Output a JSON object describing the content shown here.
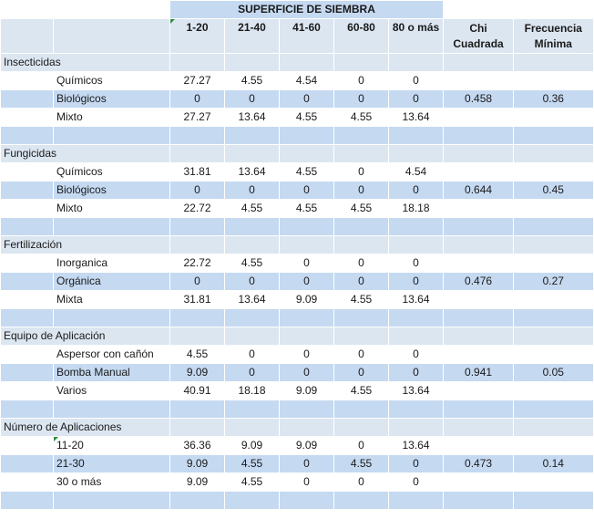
{
  "table_title": "SUPERFICIE DE SIEMBRA",
  "columns": [
    "1-20",
    "21-40",
    "41-60",
    "60-80",
    "80 o más"
  ],
  "chi_header": [
    "Chi",
    "Cuadrada"
  ],
  "freq_header": [
    "Frecuencia",
    "Mínima"
  ],
  "sections": [
    {
      "name": "Insecticidas",
      "rows": [
        {
          "label": "Químicos",
          "values": [
            "27.27",
            "4.55",
            "4.54",
            "0",
            "0"
          ],
          "chi": "",
          "freq": ""
        },
        {
          "label": "Biológicos",
          "values": [
            "0",
            "0",
            "0",
            "0",
            "0"
          ],
          "chi": "0.458",
          "freq": "0.36"
        },
        {
          "label": "Mixto",
          "values": [
            "27.27",
            "13.64",
            "4.55",
            "4.55",
            "13.64"
          ],
          "chi": "",
          "freq": ""
        }
      ]
    },
    {
      "name": "Fungicidas",
      "rows": [
        {
          "label": "Químicos",
          "values": [
            "31.81",
            "13.64",
            "4.55",
            "0",
            "4.54"
          ],
          "chi": "",
          "freq": ""
        },
        {
          "label": "Biológicos",
          "values": [
            "0",
            "0",
            "0",
            "0",
            "0"
          ],
          "chi": "0.644",
          "freq": "0.45"
        },
        {
          "label": "Mixto",
          "values": [
            "22.72",
            "4.55",
            "4.55",
            "4.55",
            "18.18"
          ],
          "chi": "",
          "freq": ""
        }
      ]
    },
    {
      "name": "Fertilización",
      "rows": [
        {
          "label": "Inorganica",
          "values": [
            "22.72",
            "4.55",
            "0",
            "0",
            "0"
          ],
          "chi": "",
          "freq": ""
        },
        {
          "label": "Orgánica",
          "values": [
            "0",
            "0",
            "0",
            "0",
            "0"
          ],
          "chi": "0.476",
          "freq": "0.27"
        },
        {
          "label": "Mixta",
          "values": [
            "31.81",
            "13.64",
            "9.09",
            "4.55",
            "13.64"
          ],
          "chi": "",
          "freq": ""
        }
      ]
    },
    {
      "name": "Equipo de Aplicación",
      "rows": [
        {
          "label": "Aspersor con cañón",
          "values": [
            "4.55",
            "0",
            "0",
            "0",
            "0"
          ],
          "chi": "",
          "freq": ""
        },
        {
          "label": "Bomba Manual",
          "values": [
            "9.09",
            "0",
            "0",
            "0",
            "0"
          ],
          "chi": "0.941",
          "freq": "0.05"
        },
        {
          "label": "Varios",
          "values": [
            "40.91",
            "18.18",
            "9.09",
            "4.55",
            "13.64"
          ],
          "chi": "",
          "freq": ""
        }
      ]
    },
    {
      "name": "Número de Aplicaciones",
      "rows": [
        {
          "label": "11-20",
          "values": [
            "36.36",
            "9.09",
            "9.09",
            "0",
            "13.64"
          ],
          "chi": "",
          "freq": ""
        },
        {
          "label": "21-30",
          "values": [
            "9.09",
            "4.55",
            "0",
            "4.55",
            "0"
          ],
          "chi": "0.473",
          "freq": "0.14"
        },
        {
          "label": "30 o más",
          "values": [
            "9.09",
            "4.55",
            "0",
            "0",
            "0"
          ],
          "chi": "",
          "freq": ""
        }
      ]
    }
  ],
  "colors": {
    "band_light": "#dce6f1",
    "band_dark": "#c5d9f1",
    "comment_marker": "#2e8b3e"
  }
}
